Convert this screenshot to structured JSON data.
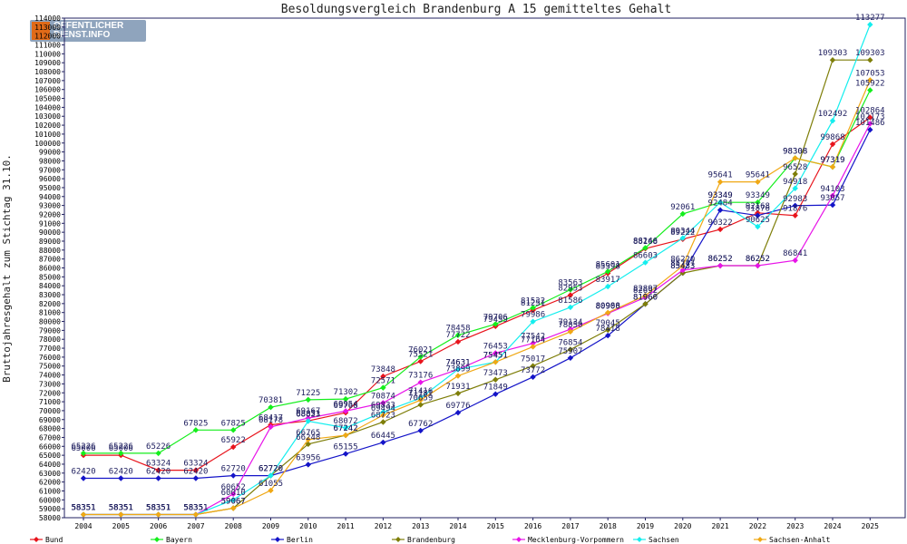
{
  "logo": {
    "line1": "OFFENTLICHER",
    "line2": "DIENST.INFO"
  },
  "chart_data": {
    "type": "line",
    "title": "Besoldungsvergleich Brandenburg A 15 gemitteltes Gehalt",
    "xlabel": "",
    "ylabel": "Bruttojahresgehalt zum Stichtag 31.10.",
    "x": [
      "2004",
      "2005",
      "2006",
      "2007",
      "2008",
      "2009",
      "2010",
      "2011",
      "2012",
      "2013",
      "2014",
      "2015",
      "2016",
      "2017",
      "2018",
      "2019",
      "2020",
      "2021",
      "2022",
      "2023",
      "2024",
      "2025"
    ],
    "ylim": [
      58000,
      114000
    ],
    "ytick_step": 1000,
    "grid": false,
    "legend_position": "bottom",
    "series": [
      {
        "name": "Bund",
        "color": "#e8141c",
        "values": [
          65006,
          65006,
          63324,
          63324,
          65922,
          68417,
          68851,
          69768,
          73848,
          75521,
          77722,
          79459,
          81251,
          82953,
          85398,
          88168,
          89222,
          90322,
          92168,
          91876,
          99868,
          102864
        ]
      },
      {
        "name": "Bayern",
        "color": "#14ee1c",
        "values": [
          65226,
          65226,
          65226,
          67825,
          67825,
          70381,
          71225,
          71302,
          72571,
          76021,
          78458,
          79706,
          81532,
          83563,
          85601,
          88246,
          92061,
          93349,
          93349,
          98308,
          97319,
          105922
        ]
      },
      {
        "name": "Berlin",
        "color": "#1414c8",
        "values": [
          62420,
          62420,
          62420,
          62420,
          62720,
          62720,
          63956,
          65155,
          66445,
          67762,
          69776,
          71849,
          73772,
          75907,
          78418,
          81960,
          85433,
          92484,
          91876,
          92983,
          93057,
          101486
        ]
      },
      {
        "name": "Brandenburg",
        "color": "#7e7e08",
        "values": [
          58351,
          58351,
          58351,
          58351,
          59067,
          62720,
          66248,
          67242,
          68723,
          70659,
          71931,
          73473,
          75017,
          76854,
          79045,
          81960,
          85433,
          86252,
          86252,
          96528,
          109303,
          109303
        ]
      },
      {
        "name": "Mecklenburg-Vorpommern",
        "color": "#e814e8",
        "values": [
          58351,
          58351,
          58351,
          58351,
          60652,
          68178,
          69167,
          69954,
          70874,
          73176,
          74631,
          76453,
          77542,
          79134,
          80900,
          82692,
          85747,
          86252,
          86252,
          86841,
          94103,
          102173
        ]
      },
      {
        "name": "Sachsen",
        "color": "#14eeee",
        "values": [
          58351,
          58351,
          58351,
          58351,
          60010,
          62720,
          68823,
          68072,
          69833,
          71416,
          74631,
          75451,
          79986,
          81586,
          83917,
          86603,
          89344,
          93349,
          90625,
          94918,
          102492,
          113277
        ]
      },
      {
        "name": "Sachsen-Anhalt",
        "color": "#f0a814",
        "values": [
          58351,
          58351,
          58351,
          58351,
          59067,
          61055,
          66765,
          67242,
          69494,
          71181,
          73899,
          75451,
          77164,
          78850,
          80988,
          82897,
          86220,
          95641,
          95641,
          98308,
          97319,
          107053
        ]
      }
    ]
  }
}
